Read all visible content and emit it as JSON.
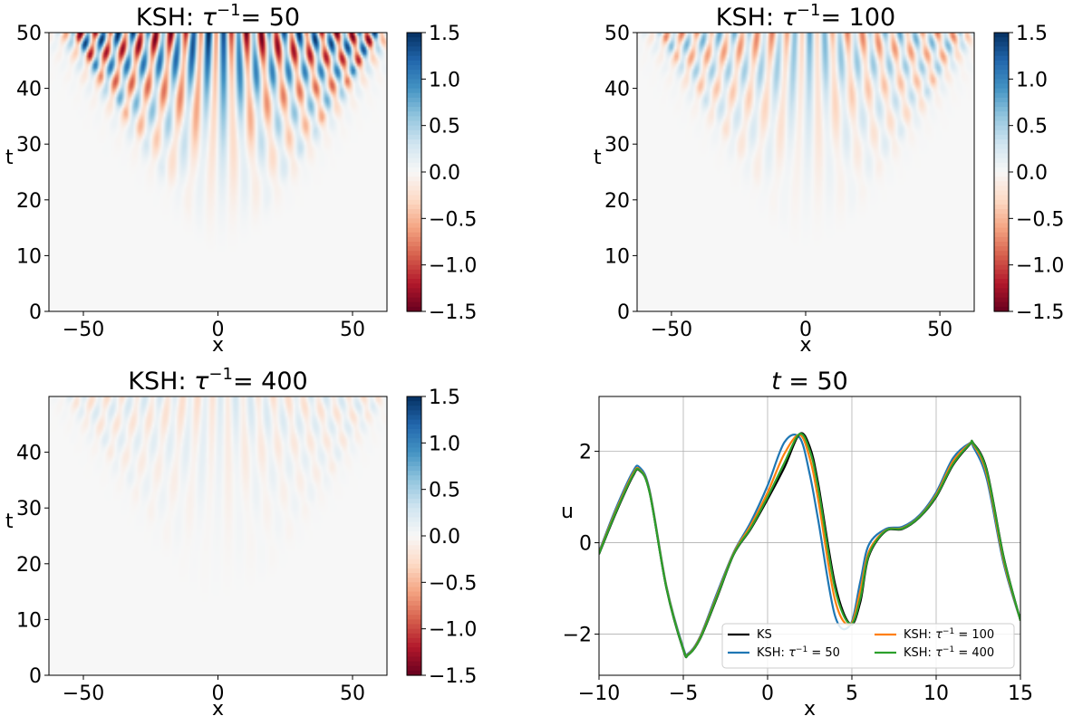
{
  "colorbar": {
    "range": [
      -1.5,
      1.5
    ],
    "ticks": [
      "1.5",
      "1.0",
      "0.5",
      "0.0",
      "−0.5",
      "−1.0",
      "−1.5"
    ],
    "colormap": [
      "#67001f",
      "#b2182b",
      "#d6604d",
      "#f4a582",
      "#fddbc7",
      "#f7f7f7",
      "#d1e5f0",
      "#92c5de",
      "#4393c3",
      "#2166ac",
      "#053061"
    ]
  },
  "chart_data": [
    {
      "type": "heatmap",
      "title": "KSH: τ⁻¹= 50",
      "title_main": "KSH: ",
      "title_math": "τ",
      "title_sup": "−1",
      "title_tail": "= 50",
      "xlabel": "x",
      "ylabel": "t",
      "xlim": [
        -62.8,
        62.8
      ],
      "ylim": [
        0,
        50
      ],
      "xticks": [
        "−50",
        "0",
        "50"
      ],
      "yticks": [
        "0",
        "10",
        "20",
        "30",
        "40",
        "50"
      ],
      "amplitude": 1.0
    },
    {
      "type": "heatmap",
      "title": "KSH: τ⁻¹= 100",
      "title_main": "KSH: ",
      "title_math": "τ",
      "title_sup": "−1",
      "title_tail": "= 100",
      "xlabel": "x",
      "ylabel": "t",
      "xlim": [
        -62.8,
        62.8
      ],
      "ylim": [
        0,
        50
      ],
      "xticks": [
        "−50",
        "0",
        "50"
      ],
      "yticks": [
        "0",
        "10",
        "20",
        "30",
        "40",
        "50"
      ],
      "amplitude": 0.5
    },
    {
      "type": "heatmap",
      "title": "KSH: τ⁻¹= 400",
      "title_main": "KSH: ",
      "title_math": "τ",
      "title_sup": "−1",
      "title_tail": "= 400",
      "xlabel": "x",
      "ylabel": "t",
      "xlim": [
        -62.8,
        62.8
      ],
      "ylim": [
        0,
        50
      ],
      "xticks": [
        "−50",
        "0",
        "50"
      ],
      "yticks": [
        "0",
        "10",
        "20",
        "30",
        "40"
      ],
      "amplitude": 0.18
    },
    {
      "type": "line",
      "title": "t = 50",
      "title_math": "t",
      "title_tail": " = 50",
      "xlabel": "x",
      "ylabel": "u",
      "xlim": [
        -10,
        15
      ],
      "ylim": [
        -2.9,
        3.2
      ],
      "xticks": [
        -10,
        -5,
        0,
        5,
        10,
        15
      ],
      "xtick_labels": [
        "−10",
        "−5",
        "0",
        "5",
        "10",
        "15"
      ],
      "yticks": [
        -2,
        0,
        2
      ],
      "ytick_labels": [
        "−2",
        "0",
        "2"
      ],
      "grid": true,
      "legend_position": "lower-right",
      "x": [
        -10,
        -9,
        -8,
        -7.6,
        -7,
        -6,
        -5,
        -4.7,
        -4,
        -3,
        -2,
        -1,
        0,
        1,
        1.9,
        2.5,
        3,
        4,
        4.9,
        5.5,
        6,
        7,
        8,
        9,
        10,
        11,
        12,
        12.2,
        13,
        14,
        15
      ],
      "series": [
        {
          "name": "KS",
          "name_main": "KS",
          "color": "#000000",
          "y": [
            -0.25,
            0.65,
            1.45,
            1.58,
            1.1,
            -1.0,
            -2.35,
            -2.45,
            -2.1,
            -1.2,
            -0.25,
            0.3,
            0.95,
            1.65,
            2.38,
            2.1,
            1.3,
            -0.9,
            -1.78,
            -1.3,
            -0.3,
            0.25,
            0.3,
            0.55,
            1.0,
            1.7,
            2.15,
            2.18,
            1.6,
            -0.3,
            -1.7
          ]
        },
        {
          "name": "KSH: τ⁻¹ = 50",
          "name_main": "KSH: ",
          "name_math": "τ",
          "name_sup": "−1",
          "name_tail": " = 50",
          "color": "#1f77b4",
          "y": [
            -0.2,
            0.75,
            1.55,
            1.65,
            1.15,
            -0.95,
            -2.3,
            -2.42,
            -2.05,
            -1.1,
            -0.2,
            0.45,
            1.25,
            2.2,
            2.3,
            1.5,
            0.5,
            -1.6,
            -1.8,
            -0.85,
            -0.05,
            0.3,
            0.35,
            0.6,
            1.1,
            1.85,
            2.18,
            2.1,
            1.4,
            -0.45,
            -1.7
          ]
        },
        {
          "name": "KSH: τ⁻¹ = 100",
          "name_main": "KSH: ",
          "name_math": "τ",
          "name_sup": "−1",
          "name_tail": " = 100",
          "color": "#ff7f0e",
          "y": [
            -0.22,
            0.7,
            1.5,
            1.6,
            1.12,
            -0.97,
            -2.33,
            -2.44,
            -2.07,
            -1.15,
            -0.22,
            0.38,
            1.1,
            1.95,
            2.36,
            1.85,
            0.95,
            -1.25,
            -1.79,
            -1.05,
            -0.2,
            0.27,
            0.32,
            0.57,
            1.05,
            1.78,
            2.17,
            2.15,
            1.5,
            -0.38,
            -1.7
          ]
        },
        {
          "name": "KSH: τ⁻¹ = 400",
          "name_main": "KSH: ",
          "name_math": "τ",
          "name_sup": "−1",
          "name_tail": " = 400",
          "color": "#2ca02c",
          "y": [
            -0.24,
            0.67,
            1.47,
            1.59,
            1.1,
            -0.99,
            -2.34,
            -2.45,
            -2.09,
            -1.18,
            -0.24,
            0.32,
            1.0,
            1.75,
            2.38,
            2.02,
            1.2,
            -1.0,
            -1.78,
            -1.22,
            -0.27,
            0.26,
            0.31,
            0.56,
            1.02,
            1.72,
            2.16,
            2.17,
            1.57,
            -0.32,
            -1.7
          ]
        }
      ]
    }
  ]
}
